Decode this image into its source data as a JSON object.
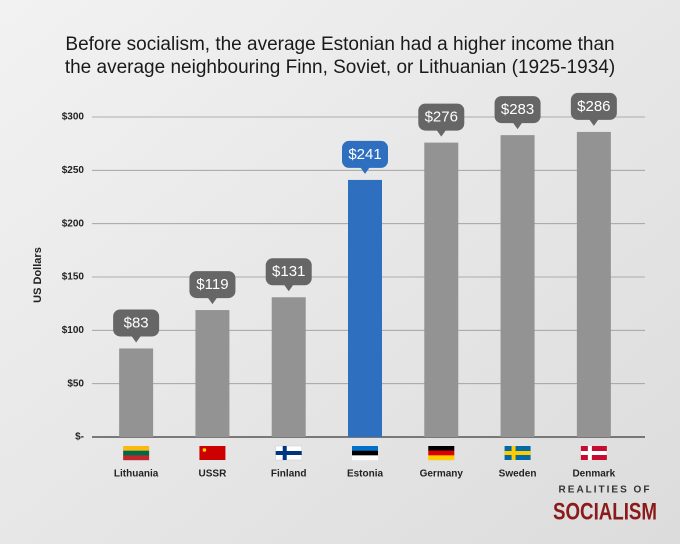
{
  "chart_data": {
    "type": "bar",
    "title": [
      "Before socialism, the average Estonian had a higher income than",
      "the average neighbouring Finn, Soviet, or Lithuanian (1925-1934)"
    ],
    "y_label": "US Dollars",
    "categories": [
      "Lithuania",
      "USSR",
      "Finland",
      "Estonia",
      "Germany",
      "Sweden",
      "Denmark"
    ],
    "values": [
      83,
      119,
      131,
      241,
      276,
      283,
      286
    ],
    "value_labels": [
      "$83",
      "$119",
      "$131",
      "$241",
      "$276",
      "$283",
      "$286"
    ],
    "colors": [
      "#939393",
      "#939393",
      "#939393",
      "#2e6fc0",
      "#939393",
      "#939393",
      "#939393"
    ],
    "ylim": [
      0,
      300
    ],
    "yticks": [
      {
        "value": 0,
        "label": "$-"
      },
      {
        "value": 50,
        "label": "$50"
      },
      {
        "value": 100,
        "label": "$100"
      },
      {
        "value": 150,
        "label": "$150"
      },
      {
        "value": 200,
        "label": "$200"
      },
      {
        "value": 250,
        "label": "$250"
      },
      {
        "value": 300,
        "label": "$300"
      }
    ],
    "grid": true
  },
  "branding": {
    "line1": "REALITIES OF",
    "line2": "SOCIALISM"
  }
}
